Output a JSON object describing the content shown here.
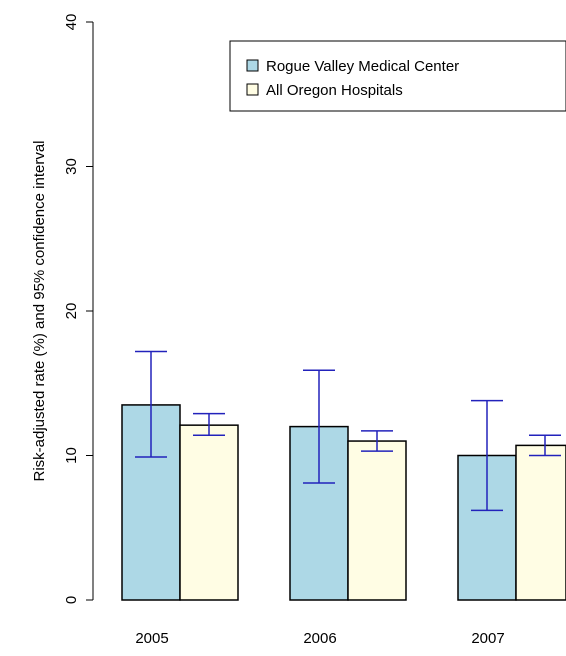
{
  "chart_data": {
    "type": "bar",
    "categories": [
      "2005",
      "2006",
      "2007"
    ],
    "ylabel": "Risk-adjusted rate (%) and 95% confidence interval",
    "ylim": [
      0,
      40
    ],
    "yticks": [
      "0",
      "10",
      "20",
      "30",
      "40"
    ],
    "grid": false,
    "legend_placement": "top-right",
    "colors": {
      "error_bar": "#2222bb",
      "bar_border": "#000000"
    },
    "series": [
      {
        "name": "Rogue Valley Medical Center",
        "color": "#add8e6",
        "values": [
          13.5,
          12.0,
          10.0
        ],
        "ci_low": [
          9.9,
          8.1,
          6.2
        ],
        "ci_high": [
          17.2,
          15.9,
          13.8
        ]
      },
      {
        "name": "All Oregon Hospitals",
        "color": "#fffde4",
        "values": [
          12.1,
          11.0,
          10.7
        ],
        "ci_low": [
          11.4,
          10.3,
          10.0
        ],
        "ci_high": [
          12.9,
          11.7,
          11.4
        ]
      }
    ]
  }
}
